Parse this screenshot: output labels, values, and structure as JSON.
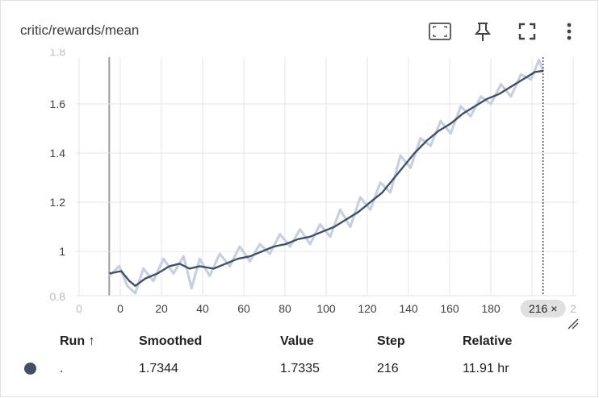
{
  "card": {
    "title": "critic/rewards/mean"
  },
  "toolbar": {
    "icons": [
      "fit-to-data-icon",
      "pin-icon",
      "fullscreen-icon",
      "more-vert-icon"
    ]
  },
  "colors": {
    "smoothed": "#425066",
    "raw": "#c8d0e0",
    "grid": "#e6e6e6",
    "axis": "#9e9e9e",
    "cursor_chip": "#e0e0e0"
  },
  "chart_data": {
    "type": "line",
    "x_ticks": [
      "0",
      "0",
      "20",
      "40",
      "60",
      "80",
      "100",
      "120",
      "140",
      "160",
      "180",
      "200",
      "2"
    ],
    "y_ticks": [
      "1",
      "1.2",
      "1.4",
      "1.6"
    ],
    "y_ticks_clipped": [
      "0.8",
      "1.8"
    ],
    "xlim": [
      -17,
      233
    ],
    "ylim": [
      0.82,
      1.79
    ],
    "hover_step_label": "216 ×",
    "hover_step": 216,
    "smoothed_points": [
      [
        0,
        0.91
      ],
      [
        6,
        0.92
      ],
      [
        10,
        0.88
      ],
      [
        13,
        0.86
      ],
      [
        18,
        0.89
      ],
      [
        24,
        0.91
      ],
      [
        30,
        0.94
      ],
      [
        35,
        0.95
      ],
      [
        40,
        0.93
      ],
      [
        45,
        0.94
      ],
      [
        52,
        0.93
      ],
      [
        58,
        0.95
      ],
      [
        64,
        0.97
      ],
      [
        70,
        0.98
      ],
      [
        76,
        1.0
      ],
      [
        82,
        1.02
      ],
      [
        88,
        1.03
      ],
      [
        94,
        1.05
      ],
      [
        100,
        1.06
      ],
      [
        106,
        1.08
      ],
      [
        112,
        1.1
      ],
      [
        118,
        1.13
      ],
      [
        124,
        1.16
      ],
      [
        130,
        1.2
      ],
      [
        136,
        1.24
      ],
      [
        142,
        1.3
      ],
      [
        148,
        1.36
      ],
      [
        152,
        1.4
      ],
      [
        158,
        1.45
      ],
      [
        164,
        1.49
      ],
      [
        170,
        1.52
      ],
      [
        176,
        1.56
      ],
      [
        182,
        1.59
      ],
      [
        188,
        1.62
      ],
      [
        194,
        1.64
      ],
      [
        200,
        1.67
      ],
      [
        206,
        1.7
      ],
      [
        212,
        1.73
      ],
      [
        216,
        1.7344
      ]
    ],
    "raw_points": [
      [
        0,
        0.9
      ],
      [
        5,
        0.94
      ],
      [
        9,
        0.86
      ],
      [
        13,
        0.83
      ],
      [
        17,
        0.93
      ],
      [
        22,
        0.88
      ],
      [
        27,
        0.97
      ],
      [
        32,
        0.91
      ],
      [
        37,
        0.98
      ],
      [
        41,
        0.85
      ],
      [
        45,
        0.97
      ],
      [
        50,
        0.9
      ],
      [
        55,
        0.99
      ],
      [
        60,
        0.94
      ],
      [
        65,
        1.02
      ],
      [
        70,
        0.96
      ],
      [
        75,
        1.03
      ],
      [
        80,
        0.99
      ],
      [
        85,
        1.07
      ],
      [
        90,
        1.02
      ],
      [
        95,
        1.09
      ],
      [
        100,
        1.03
      ],
      [
        105,
        1.11
      ],
      [
        110,
        1.06
      ],
      [
        115,
        1.17
      ],
      [
        120,
        1.1
      ],
      [
        125,
        1.22
      ],
      [
        130,
        1.17
      ],
      [
        135,
        1.28
      ],
      [
        140,
        1.24
      ],
      [
        145,
        1.39
      ],
      [
        150,
        1.34
      ],
      [
        155,
        1.46
      ],
      [
        160,
        1.43
      ],
      [
        165,
        1.53
      ],
      [
        170,
        1.48
      ],
      [
        175,
        1.59
      ],
      [
        180,
        1.55
      ],
      [
        185,
        1.63
      ],
      [
        190,
        1.6
      ],
      [
        195,
        1.68
      ],
      [
        200,
        1.63
      ],
      [
        205,
        1.72
      ],
      [
        210,
        1.7
      ],
      [
        214,
        1.78
      ],
      [
        216,
        1.7335
      ]
    ]
  },
  "table": {
    "headers": {
      "run": "Run ↑",
      "smoothed": "Smoothed",
      "value": "Value",
      "step": "Step",
      "relative": "Relative"
    },
    "row": {
      "run": ".",
      "smoothed": "1.7344",
      "value": "1.7335",
      "step": "216",
      "relative": "11.91 hr"
    }
  }
}
